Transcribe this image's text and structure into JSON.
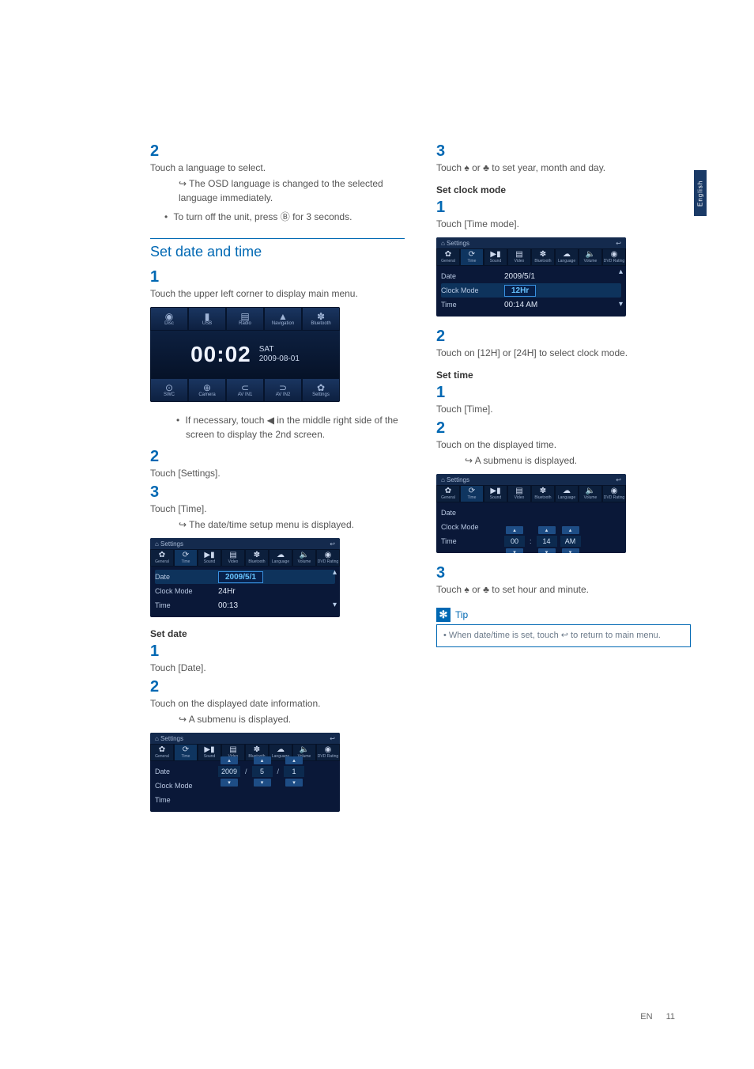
{
  "sidetab": "English",
  "footer": {
    "lang": "EN",
    "page": "11"
  },
  "colL": {
    "step2": "Touch a language to select.",
    "step2_sub": "The OSD language is changed to the selected language immediately.",
    "bullet_off": "To turn off the unit, press Ⓑ for 3 seconds.",
    "section_title": "Set date and time",
    "step1": "Touch the upper left corner to display main menu.",
    "menu": {
      "top": [
        {
          "icon": "◉",
          "label": "Disc"
        },
        {
          "icon": "▮",
          "label": "USB"
        },
        {
          "icon": "▤",
          "label": "Radio"
        },
        {
          "icon": "▲",
          "label": "Navigation"
        },
        {
          "icon": "✽",
          "label": "Bluetooth"
        }
      ],
      "clock": "00:02",
      "clock_day": "SAT",
      "clock_date": "2009-08-01",
      "bot": [
        {
          "icon": "⊙",
          "label": "SWC"
        },
        {
          "icon": "⊕",
          "label": "Camera"
        },
        {
          "icon": "⊂",
          "label": "AV IN1"
        },
        {
          "icon": "⊃",
          "label": "AV IN2"
        },
        {
          "icon": "✿",
          "label": "Settings"
        }
      ]
    },
    "sub_bullet": "If necessary, touch ◀ in the middle right side of the screen to display the 2nd screen.",
    "stepSettings": "Touch [Settings].",
    "stepTime": "Touch [Time].",
    "stepTime_sub": "The date/time setup menu is displayed.",
    "settings_shot": {
      "hdr_left": "⌂ Settings",
      "hdr_right": "↩",
      "tabs": [
        {
          "ti": "✿",
          "l": "General"
        },
        {
          "ti": "⟳",
          "l": "Time"
        },
        {
          "ti": "▶▮",
          "l": "Sound"
        },
        {
          "ti": "▤",
          "l": "Video"
        },
        {
          "ti": "✽",
          "l": "Bluetooth"
        },
        {
          "ti": "☁",
          "l": "Language"
        },
        {
          "ti": "🔈",
          "l": "Volume"
        },
        {
          "ti": "◉",
          "l": "DVD Rating"
        }
      ],
      "rows": [
        {
          "lbl": "Date",
          "val": "2009/5/1",
          "hl": true,
          "box": true
        },
        {
          "lbl": "Clock Mode",
          "val": "24Hr"
        },
        {
          "lbl": "Time",
          "val": "00:13"
        }
      ]
    },
    "setdate_head": "Set date",
    "sd_step1": "Touch [Date].",
    "sd_step2": "Touch on the displayed date information.",
    "sd_step2_sub": "A submenu is displayed.",
    "date_spin": {
      "rows": [
        {
          "lbl": "Date",
          "vals": [
            "2009",
            "/",
            "5",
            "/",
            "1"
          ],
          "spin": true
        },
        {
          "lbl": "Clock Mode"
        },
        {
          "lbl": "Time"
        }
      ]
    }
  },
  "colR": {
    "step3": "Touch ♠ or ♣ to set year, month and day.",
    "setclock_head": "Set clock mode",
    "sc_step1": "Touch [Time mode].",
    "clockmode_shot": {
      "rows": [
        {
          "lbl": "Date",
          "val": "2009/5/1"
        },
        {
          "lbl": "Clock Mode",
          "val": "12Hr",
          "hl": true,
          "box": true
        },
        {
          "lbl": "Time",
          "val": "00:14  AM"
        }
      ]
    },
    "sc_step2": "Touch on [12H] or [24H] to select clock mode.",
    "settime_head": "Set time",
    "st_step1": "Touch [Time].",
    "st_step2": "Touch on the displayed time.",
    "st_step2_sub": "A submenu is displayed.",
    "time_spin": {
      "rows": [
        {
          "lbl": "Date"
        },
        {
          "lbl": "Clock Mode"
        },
        {
          "lbl": "Time",
          "vals": [
            "00",
            ":",
            "14",
            "AM"
          ],
          "spin": true
        }
      ]
    },
    "st_step3": "Touch ♠ or ♣ to set hour and minute.",
    "tip_label": "Tip",
    "tip_body": "When date/time is set, touch ↩ to return to main menu."
  }
}
